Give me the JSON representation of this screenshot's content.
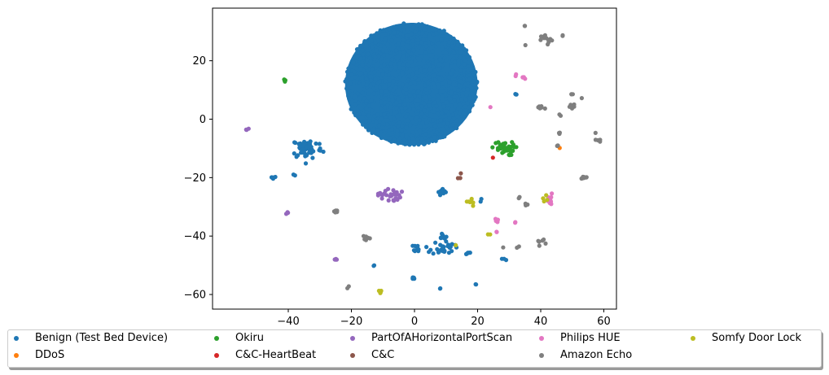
{
  "chart_data": {
    "type": "scatter",
    "title": "",
    "xlabel": "",
    "ylabel": "",
    "xlim": [
      -64,
      64
    ],
    "ylim": [
      -65,
      38
    ],
    "xticks": [
      -40,
      -20,
      0,
      20,
      40,
      60
    ],
    "yticks": [
      -60,
      -40,
      -20,
      0,
      20
    ],
    "xtick_labels": [
      "−40",
      "−20",
      "0",
      "20",
      "40",
      "60"
    ],
    "ytick_labels": [
      "−60",
      "−40",
      "−20",
      "0",
      "20"
    ],
    "grid": false,
    "legend_placement": "bottom",
    "series": [
      {
        "name": "Benign (Test Bed Device)",
        "color": "#1f77b4",
        "clusters": [
          {
            "center": [
              -1,
              12
            ],
            "spread": [
              21,
              21
            ],
            "count": 1200,
            "shape": "disk"
          },
          {
            "center": [
              -34,
              -10
            ],
            "spread": [
              4,
              3
            ],
            "count": 60
          },
          {
            "center": [
              -45,
              -20
            ],
            "spread": [
              1,
              0.5
            ],
            "count": 6
          },
          {
            "center": [
              -38,
              -19
            ],
            "spread": [
              0.5,
              0.5
            ],
            "count": 2
          },
          {
            "center": [
              9,
              -25
            ],
            "spread": [
              1.2,
              1
            ],
            "count": 15
          },
          {
            "center": [
              9,
              -44
            ],
            "spread": [
              3,
              2
            ],
            "count": 30
          },
          {
            "center": [
              1,
              -44
            ],
            "spread": [
              1,
              1
            ],
            "count": 10
          },
          {
            "center": [
              9,
              -40
            ],
            "spread": [
              1,
              1
            ],
            "count": 8
          },
          {
            "center": [
              -0.5,
              -54.5
            ],
            "spread": [
              0.5,
              0.5
            ],
            "count": 5
          },
          {
            "center": [
              -13,
              -50
            ],
            "spread": [
              0.3,
              0.3
            ],
            "count": 2
          },
          {
            "center": [
              8,
              -58
            ],
            "spread": [
              0.3,
              0.3
            ],
            "count": 2
          },
          {
            "center": [
              17,
              -46
            ],
            "spread": [
              1,
              0.5
            ],
            "count": 5
          },
          {
            "center": [
              19.5,
              -56.5
            ],
            "spread": [
              0.3,
              0.3
            ],
            "count": 2
          },
          {
            "center": [
              28,
              -48
            ],
            "spread": [
              1.5,
              0.5
            ],
            "count": 3
          },
          {
            "center": [
              32,
              9
            ],
            "spread": [
              0.5,
              1
            ],
            "count": 3
          },
          {
            "center": [
              21,
              -28
            ],
            "spread": [
              0.5,
              0.5
            ],
            "count": 2
          }
        ]
      },
      {
        "name": "DDoS",
        "color": "#ff7f0e",
        "clusters": [
          {
            "center": [
              46,
              -10
            ],
            "spread": [
              0.2,
              0.2
            ],
            "count": 1
          }
        ]
      },
      {
        "name": "Okiru",
        "color": "#2ca02c",
        "clusters": [
          {
            "center": [
              28,
              -10
            ],
            "spread": [
              3,
              2
            ],
            "count": 35
          },
          {
            "center": [
              -41,
              13
            ],
            "spread": [
              0.3,
              0.5
            ],
            "count": 4
          }
        ]
      },
      {
        "name": "C&C-HeartBeat",
        "color": "#d62728",
        "clusters": [
          {
            "center": [
              25,
              -13
            ],
            "spread": [
              0.2,
              0.2
            ],
            "count": 1
          }
        ]
      },
      {
        "name": "PartOfAHorizontalPortScan",
        "color": "#9467bd",
        "clusters": [
          {
            "center": [
              -8,
              -26
            ],
            "spread": [
              3,
              2
            ],
            "count": 30
          },
          {
            "center": [
              -53,
              -3.5
            ],
            "spread": [
              0.5,
              0.3
            ],
            "count": 3
          },
          {
            "center": [
              -40.5,
              -32
            ],
            "spread": [
              0.5,
              0.3
            ],
            "count": 3
          },
          {
            "center": [
              -25,
              -48
            ],
            "spread": [
              0.7,
              0.3
            ],
            "count": 4
          }
        ]
      },
      {
        "name": "C&C",
        "color": "#8c564b",
        "clusters": [
          {
            "center": [
              14,
              -20
            ],
            "spread": [
              0.8,
              1.2
            ],
            "count": 3
          }
        ]
      },
      {
        "name": "Philips HUE",
        "color": "#e377c2",
        "clusters": [
          {
            "center": [
              34,
              14.5
            ],
            "spread": [
              1.5,
              1
            ],
            "count": 6
          },
          {
            "center": [
              24,
              4
            ],
            "spread": [
              0.2,
              0.2
            ],
            "count": 1
          },
          {
            "center": [
              43,
              -28
            ],
            "spread": [
              1,
              2
            ],
            "count": 10
          },
          {
            "center": [
              26,
              -35
            ],
            "spread": [
              0.5,
              1.5
            ],
            "count": 4
          },
          {
            "center": [
              32,
              -35
            ],
            "spread": [
              0.3,
              0.5
            ],
            "count": 2
          },
          {
            "center": [
              26,
              -38.5
            ],
            "spread": [
              0.5,
              0.5
            ],
            "count": 2
          }
        ]
      },
      {
        "name": "Amazon Echo",
        "color": "#7f7f7f",
        "clusters": [
          {
            "center": [
              42,
              27
            ],
            "spread": [
              1.5,
              1.5
            ],
            "count": 12
          },
          {
            "center": [
              35,
              32
            ],
            "spread": [
              0.3,
              0.3
            ],
            "count": 2
          },
          {
            "center": [
              47,
              28.5
            ],
            "spread": [
              0.3,
              0.3
            ],
            "count": 2
          },
          {
            "center": [
              35,
              25
            ],
            "spread": [
              0.3,
              0.3
            ],
            "count": 1
          },
          {
            "center": [
              40,
              4
            ],
            "spread": [
              1,
              0.6
            ],
            "count": 8
          },
          {
            "center": [
              50,
              4
            ],
            "spread": [
              1,
              1
            ],
            "count": 6
          },
          {
            "center": [
              50,
              8.5
            ],
            "spread": [
              0.5,
              0.3
            ],
            "count": 3
          },
          {
            "center": [
              53,
              7.5
            ],
            "spread": [
              0.3,
              0.3
            ],
            "count": 1
          },
          {
            "center": [
              46,
              1.5
            ],
            "spread": [
              0.5,
              0.5
            ],
            "count": 2
          },
          {
            "center": [
              46,
              -5
            ],
            "spread": [
              0.5,
              0.6
            ],
            "count": 3
          },
          {
            "center": [
              45.5,
              -9
            ],
            "spread": [
              0.6,
              0.4
            ],
            "count": 4
          },
          {
            "center": [
              58,
              -6
            ],
            "spread": [
              1,
              2
            ],
            "count": 5
          },
          {
            "center": [
              54,
              -20
            ],
            "spread": [
              0.8,
              0.4
            ],
            "count": 8
          },
          {
            "center": [
              33,
              -27
            ],
            "spread": [
              0.3,
              0.3
            ],
            "count": 2
          },
          {
            "center": [
              35,
              -29
            ],
            "spread": [
              0.8,
              0.3
            ],
            "count": 3
          },
          {
            "center": [
              40,
              -42
            ],
            "spread": [
              1.2,
              1
            ],
            "count": 6
          },
          {
            "center": [
              33,
              -44
            ],
            "spread": [
              0.5,
              0.5
            ],
            "count": 2
          },
          {
            "center": [
              28,
              -44
            ],
            "spread": [
              0.3,
              0.3
            ],
            "count": 1
          },
          {
            "center": [
              -25,
              -31.5
            ],
            "spread": [
              0.7,
              0.4
            ],
            "count": 8
          },
          {
            "center": [
              -15,
              -40.5
            ],
            "spread": [
              1,
              0.7
            ],
            "count": 8
          },
          {
            "center": [
              -21,
              -57.5
            ],
            "spread": [
              0.3,
              0.3
            ],
            "count": 2
          }
        ]
      },
      {
        "name": "Somfy Door Lock",
        "color": "#bcbd22",
        "clusters": [
          {
            "center": [
              18,
              -28.5
            ],
            "spread": [
              1.2,
              1.2
            ],
            "count": 6
          },
          {
            "center": [
              -11,
              -59
            ],
            "spread": [
              0.8,
              0.5
            ],
            "count": 5
          },
          {
            "center": [
              13,
              -43
            ],
            "spread": [
              0.3,
              0.3
            ],
            "count": 1
          },
          {
            "center": [
              23.5,
              -39.5
            ],
            "spread": [
              0.5,
              0.3
            ],
            "count": 2
          },
          {
            "center": [
              41,
              -27
            ],
            "spread": [
              0.8,
              1
            ],
            "count": 4
          }
        ]
      }
    ]
  }
}
